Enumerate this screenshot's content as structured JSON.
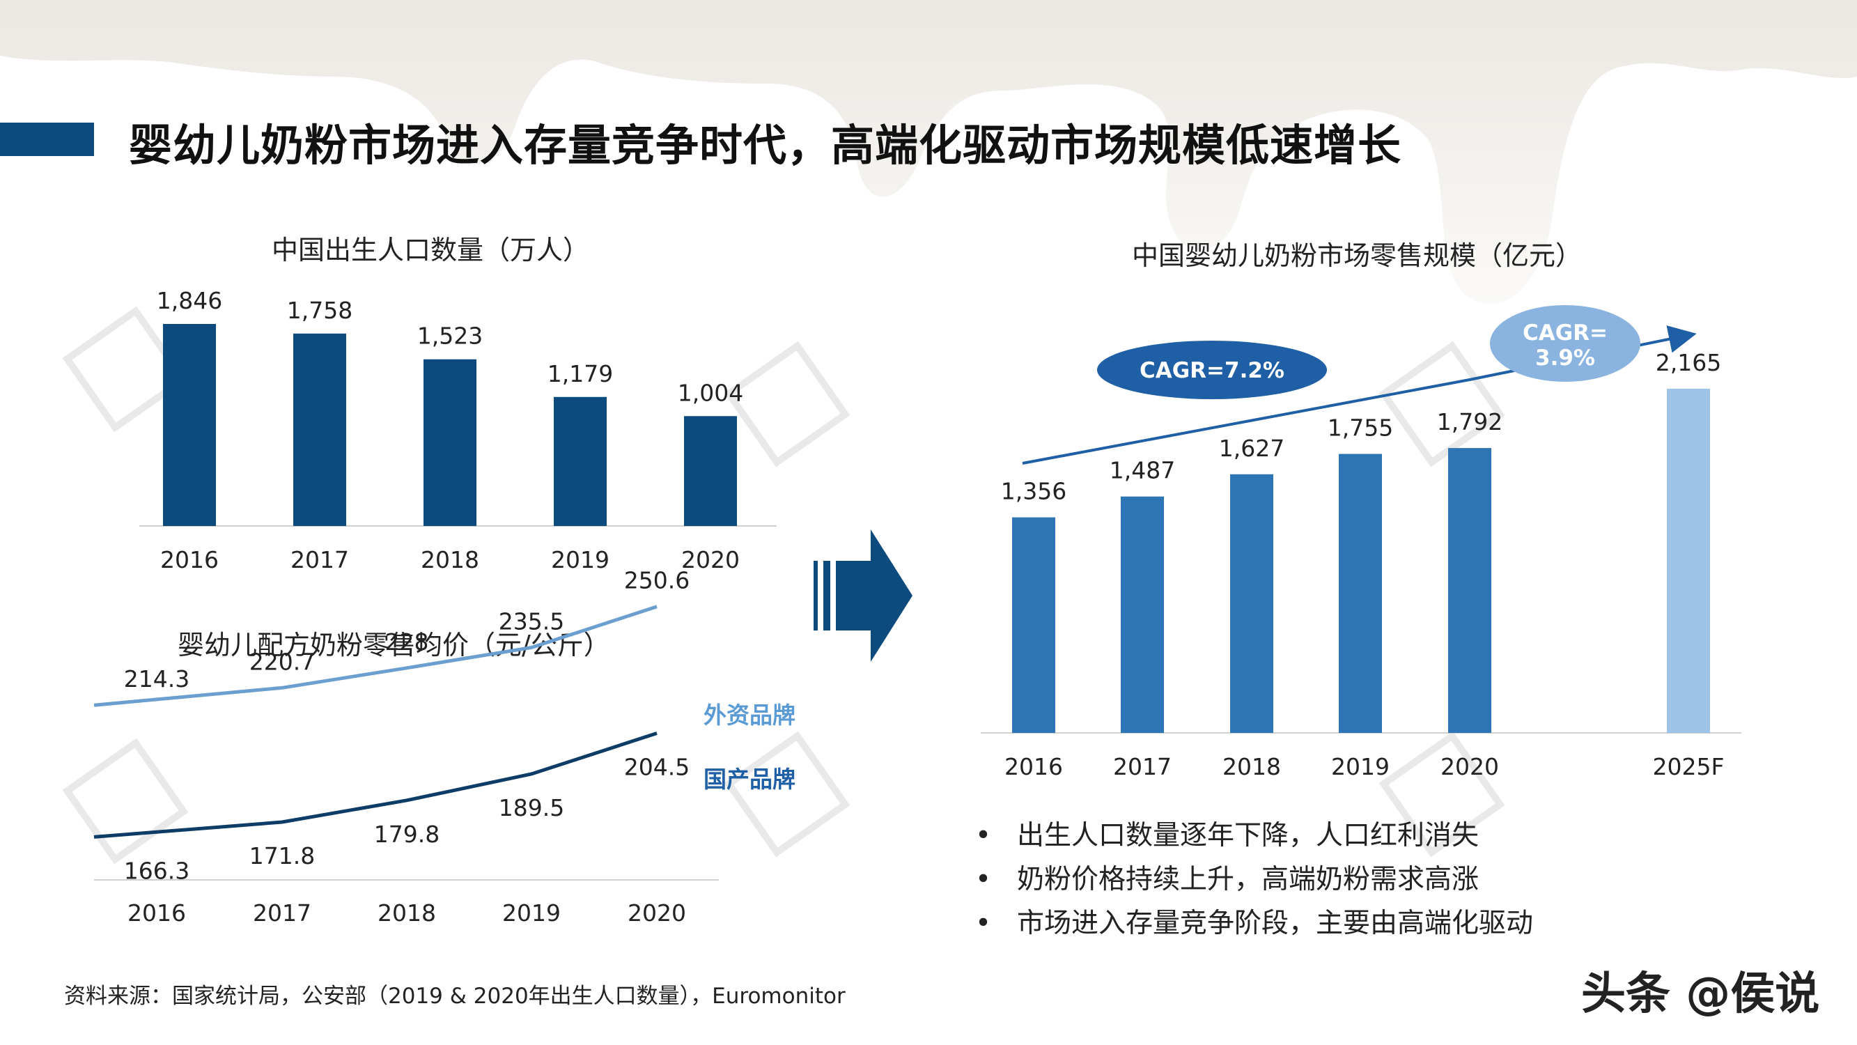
{
  "title": "婴幼儿奶粉市场进入存量竞争时代，高端化驱动市场规模低速增长",
  "source_note": "资料来源：国家统计局，公安部（2019 & 2020年出生人口数量），Euromonitor",
  "footer_logo": "头条 @侯说",
  "bullets": [
    "出生人口数量逐年下降，人口红利消失",
    "奶粉价格持续上升，高端奶粉需求高涨",
    "市场进入存量竞争阶段，主要由高端化驱动"
  ],
  "colors": {
    "title_bar": "#0d4a7d",
    "births_bar": "#0d4a7d",
    "market_bar": "#2e75b6",
    "forecast_bar": "#9dc3e6",
    "foreign_line": "#6a9fd0",
    "domestic_line": "#0d3d66",
    "cagr_dark": "#1f5fa6",
    "cagr_light": "#8ab4df"
  },
  "arrow_icon": "right-arrow-icon",
  "chart_data": [
    {
      "id": "births",
      "type": "bar",
      "title": "中国出生人口数量（万人）",
      "categories": [
        "2016",
        "2017",
        "2018",
        "2019",
        "2020"
      ],
      "values": [
        1846,
        1758,
        1523,
        1179,
        1004
      ],
      "labels": [
        "1,846",
        "1,758",
        "1,523",
        "1,179",
        "1,004"
      ],
      "ylim": [
        0,
        1846
      ]
    },
    {
      "id": "price",
      "type": "line",
      "title": "婴幼儿配方奶粉零售均价（元/公斤）",
      "categories": [
        "2016",
        "2017",
        "2018",
        "2019",
        "2020"
      ],
      "ylim": [
        150,
        260
      ],
      "series": [
        {
          "name": "外资品牌",
          "values": [
            214.3,
            220.7,
            228,
            235.5,
            250.6
          ],
          "labels": [
            "214.3",
            "220.7",
            "228",
            "235.5",
            "250.6"
          ]
        },
        {
          "name": "国产品牌",
          "values": [
            166.3,
            171.8,
            179.8,
            189.5,
            204.5
          ],
          "labels": [
            "166.3",
            "171.8",
            "179.8",
            "189.5",
            "204.5"
          ]
        }
      ]
    },
    {
      "id": "market",
      "type": "bar",
      "title": "中国婴幼儿奶粉市场零售规模（亿元）",
      "categories": [
        "2016",
        "2017",
        "2018",
        "2019",
        "2020",
        "2025F"
      ],
      "values": [
        1356,
        1487,
        1627,
        1755,
        1792,
        2165
      ],
      "labels": [
        "1,356",
        "1,487",
        "1,627",
        "1,755",
        "1,792",
        "2,165"
      ],
      "ylim": [
        0,
        2165
      ],
      "annotations": [
        {
          "text": "CAGR=7.2%",
          "from": "2016",
          "to": "2020"
        },
        {
          "text_line1": "CAGR=",
          "text_line2": "3.9%",
          "from": "2020",
          "to": "2025F"
        }
      ]
    }
  ]
}
